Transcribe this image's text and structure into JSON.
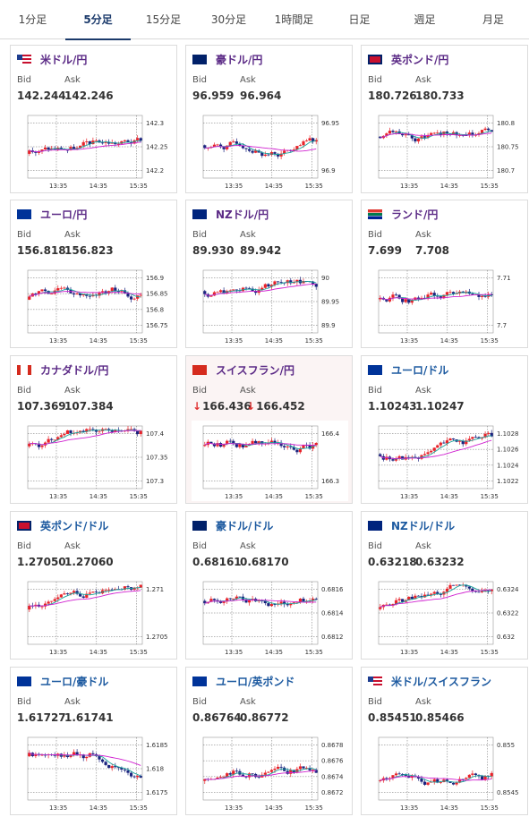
{
  "tabs": [
    {
      "label": "1分足",
      "active": false
    },
    {
      "label": "5分足",
      "active": true
    },
    {
      "label": "15分足",
      "active": false
    },
    {
      "label": "30分足",
      "active": false
    },
    {
      "label": "1時間足",
      "active": false
    },
    {
      "label": "日足",
      "active": false
    },
    {
      "label": "週足",
      "active": false
    },
    {
      "label": "月足",
      "active": false
    }
  ],
  "labels": {
    "bid": "Bid",
    "ask": "Ask",
    "down_arrow": "↓"
  },
  "colors": {
    "title_purple": "#5b2a86",
    "title_blue": "#1d5aa0",
    "up_candle": "#e8232a",
    "down_candle": "#1a237e",
    "ma_short": "#1aa39a",
    "ma_long": "#d020d0",
    "grid": "#444444"
  },
  "time_labels": [
    "13:35",
    "14:35",
    "15:35"
  ],
  "cards": [
    {
      "pair": "米ドル/円",
      "flag": "us-flag",
      "title_color": "purple",
      "bid": "142.244",
      "ask": "142.246",
      "down": false,
      "highlight": false,
      "y_ticks": [
        "142.3",
        "142.25",
        "142.2"
      ],
      "seed": 3
    },
    {
      "pair": "豪ドル/円",
      "flag": "au-flag",
      "title_color": "purple",
      "bid": "96.959",
      "ask": "96.964",
      "down": false,
      "highlight": false,
      "y_ticks": [
        "96.95",
        "96.9"
      ],
      "seed": 7
    },
    {
      "pair": "英ポンド/円",
      "flag": "gb-flag",
      "title_color": "purple",
      "bid": "180.726",
      "ask": "180.733",
      "down": false,
      "highlight": false,
      "y_ticks": [
        "180.8",
        "180.75",
        "180.7"
      ],
      "seed": 11
    },
    {
      "pair": "ユーロ/円",
      "flag": "eu-flag",
      "title_color": "purple",
      "bid": "156.818",
      "ask": "156.823",
      "down": false,
      "highlight": false,
      "y_ticks": [
        "156.9",
        "156.85",
        "156.8",
        "156.75"
      ],
      "seed": 13
    },
    {
      "pair": "NZドル/円",
      "flag": "nz-flag",
      "title_color": "purple",
      "bid": "89.930",
      "ask": "89.942",
      "down": false,
      "highlight": false,
      "y_ticks": [
        "90",
        "89.95",
        "89.9"
      ],
      "seed": 17
    },
    {
      "pair": "ランド/円",
      "flag": "za-flag",
      "title_color": "purple",
      "bid": "7.699",
      "ask": "7.708",
      "down": false,
      "highlight": false,
      "y_ticks": [
        "7.71",
        "7.7"
      ],
      "seed": 19
    },
    {
      "pair": "カナダドル/円",
      "flag": "ca-flag",
      "title_color": "purple",
      "bid": "107.369",
      "ask": "107.384",
      "down": false,
      "highlight": false,
      "y_ticks": [
        "107.4",
        "107.35",
        "107.3"
      ],
      "seed": 23
    },
    {
      "pair": "スイスフラン/円",
      "flag": "ch-flag",
      "title_color": "purple",
      "bid": "166.436",
      "ask": "166.452",
      "down": true,
      "highlight": true,
      "y_ticks": [
        "166.4",
        "166.3"
      ],
      "seed": 29
    },
    {
      "pair": "ユーロ/ドル",
      "flag": "eu-flag",
      "title_color": "blue",
      "bid": "1.10243",
      "ask": "1.10247",
      "down": false,
      "highlight": false,
      "y_ticks": [
        "1.1028",
        "1.1026",
        "1.1024",
        "1.1022"
      ],
      "seed": 31
    },
    {
      "pair": "英ポンド/ドル",
      "flag": "gb-flag",
      "title_color": "blue",
      "bid": "1.27050",
      "ask": "1.27060",
      "down": false,
      "highlight": false,
      "y_ticks": [
        "1.271",
        "1.2705"
      ],
      "seed": 37
    },
    {
      "pair": "豪ドル/ドル",
      "flag": "au-flag",
      "title_color": "blue",
      "bid": "0.68161",
      "ask": "0.68170",
      "down": false,
      "highlight": false,
      "y_ticks": [
        "0.6816",
        "0.6814",
        "0.6812"
      ],
      "seed": 41
    },
    {
      "pair": "NZドル/ドル",
      "flag": "nz-flag",
      "title_color": "blue",
      "bid": "0.63218",
      "ask": "0.63232",
      "down": false,
      "highlight": false,
      "y_ticks": [
        "0.6324",
        "0.6322",
        "0.632"
      ],
      "seed": 43
    },
    {
      "pair": "ユーロ/豪ドル",
      "flag": "eu-flag",
      "title_color": "blue",
      "bid": "1.61727",
      "ask": "1.61741",
      "down": false,
      "highlight": false,
      "y_ticks": [
        "1.6185",
        "1.618",
        "1.6175"
      ],
      "seed": 47
    },
    {
      "pair": "ユーロ/英ポンド",
      "flag": "eu-flag",
      "title_color": "blue",
      "bid": "0.86764",
      "ask": "0.86772",
      "down": false,
      "highlight": false,
      "y_ticks": [
        "0.8678",
        "0.8676",
        "0.8674",
        "0.8672"
      ],
      "seed": 53
    },
    {
      "pair": "米ドル/スイスフラン",
      "flag": "us-flag",
      "title_color": "blue",
      "bid": "0.85451",
      "ask": "0.85466",
      "down": false,
      "highlight": false,
      "y_ticks": [
        "0.855",
        "0.8545"
      ],
      "seed": 59
    }
  ]
}
